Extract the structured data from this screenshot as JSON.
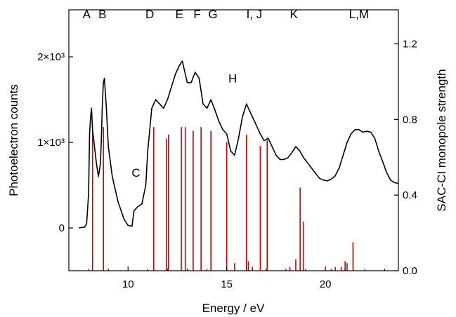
{
  "chart_data": {
    "type": "line",
    "xlabel": "Energy / eV",
    "ylabel_left": "Photoelectron counts",
    "ylabel_right": "SAC-CI monopole strength",
    "xlim": [
      7,
      23.7
    ],
    "ylim_left": [
      -500,
      2550
    ],
    "ylim_right": [
      0,
      1.38
    ],
    "xticks": [
      10,
      15,
      20
    ],
    "yticks_left": [
      {
        "value": 0,
        "label": "0"
      },
      {
        "value": 1000,
        "label": "1×10³"
      },
      {
        "value": 2000,
        "label": "2×10³"
      }
    ],
    "yticks_right": [
      {
        "value": 0.0,
        "label": "0.0"
      },
      {
        "value": 0.4,
        "label": "0.4"
      },
      {
        "value": 0.8,
        "label": "0.8"
      },
      {
        "value": 1.2,
        "label": "1.2"
      }
    ],
    "band_labels": [
      {
        "text": "A",
        "x": 7.9,
        "y": 2450
      },
      {
        "text": "B",
        "x": 8.7,
        "y": 2450
      },
      {
        "text": "D",
        "x": 11.1,
        "y": 2450
      },
      {
        "text": "E",
        "x": 12.6,
        "y": 2450
      },
      {
        "text": "F",
        "x": 13.5,
        "y": 2450
      },
      {
        "text": "G",
        "x": 14.3,
        "y": 2450
      },
      {
        "text": "I, J",
        "x": 16.4,
        "y": 2450
      },
      {
        "text": "K",
        "x": 18.4,
        "y": 2450
      },
      {
        "text": "L,M",
        "x": 21.7,
        "y": 2450
      },
      {
        "text": "H",
        "x": 15.3,
        "y": 1700
      },
      {
        "text": "C",
        "x": 10.4,
        "y": 600
      }
    ],
    "series": [
      {
        "color": "#000000",
        "axis": "left",
        "x": [
          7.5,
          7.8,
          7.9,
          8.0,
          8.05,
          8.1,
          8.15,
          8.2,
          8.3,
          8.4,
          8.5,
          8.6,
          8.65,
          8.7,
          8.75,
          8.8,
          8.9,
          9.0,
          9.2,
          9.5,
          9.8,
          10.0,
          10.2,
          10.3,
          10.5,
          10.7,
          10.9,
          11.0,
          11.2,
          11.4,
          11.6,
          11.8,
          12.0,
          12.2,
          12.4,
          12.6,
          12.75,
          12.9,
          13.0,
          13.2,
          13.4,
          13.6,
          13.8,
          14.0,
          14.2,
          14.4,
          14.6,
          14.8,
          15.0,
          15.2,
          15.4,
          15.6,
          15.8,
          16.0,
          16.1,
          16.3,
          16.5,
          16.7,
          16.9,
          17.1,
          17.3,
          17.5,
          17.7,
          17.9,
          18.1,
          18.3,
          18.5,
          18.7,
          18.9,
          19.1,
          19.3,
          19.5,
          19.7,
          19.9,
          20.1,
          20.3,
          20.5,
          20.7,
          20.9,
          21.1,
          21.3,
          21.5,
          21.7,
          21.9,
          22.1,
          22.3,
          22.5,
          22.7,
          22.9,
          23.1,
          23.3,
          23.5,
          23.7
        ],
        "y": [
          0,
          10,
          50,
          400,
          1100,
          1300,
          1400,
          1150,
          950,
          750,
          600,
          750,
          1050,
          1450,
          1700,
          1750,
          1400,
          950,
          600,
          300,
          100,
          30,
          20,
          200,
          250,
          280,
          500,
          900,
          1400,
          1500,
          1450,
          1400,
          1500,
          1650,
          1800,
          1900,
          1950,
          1800,
          1700,
          1700,
          1820,
          1750,
          1450,
          1400,
          1500,
          1380,
          1250,
          1150,
          1100,
          900,
          850,
          1050,
          1300,
          1450,
          1400,
          1300,
          1200,
          1100,
          1020,
          1050,
          950,
          850,
          800,
          800,
          820,
          880,
          950,
          900,
          820,
          760,
          700,
          640,
          580,
          560,
          550,
          570,
          610,
          700,
          850,
          1000,
          1100,
          1150,
          1150,
          1120,
          1130,
          1120,
          1050,
          900,
          780,
          650,
          560,
          530,
          520
        ]
      }
    ],
    "sticks": {
      "color": "#cc0000",
      "axis": "right",
      "x": [
        8.2,
        8.75,
        11.3,
        11.95,
        12.05,
        12.7,
        12.9,
        13.3,
        13.7,
        14.2,
        15.0,
        15.4,
        16.0,
        16.1,
        16.3,
        16.7,
        17.05,
        18.2,
        18.5,
        18.72,
        18.88,
        20.3,
        20.5,
        20.8,
        21.0,
        21.1,
        21.4
      ],
      "y": [
        0.76,
        0.76,
        0.76,
        0.7,
        0.72,
        0.76,
        0.76,
        0.74,
        0.76,
        0.74,
        0.68,
        0.04,
        0.72,
        0.05,
        0.02,
        0.66,
        0.69,
        0.02,
        0.06,
        0.44,
        0.26,
        0.01,
        0.02,
        0.02,
        0.05,
        0.04,
        0.15
      ]
    }
  }
}
